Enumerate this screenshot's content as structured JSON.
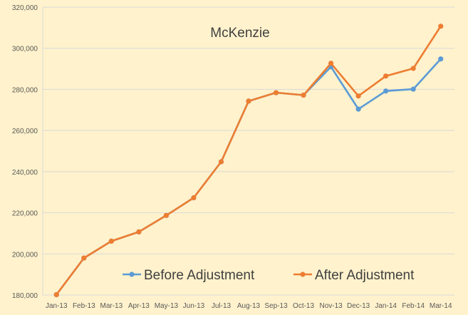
{
  "chart_data": {
    "type": "line",
    "title": "McKenzie",
    "xlabel": "",
    "ylabel": "",
    "categories": [
      "Jan-13",
      "Feb-13",
      "Mar-13",
      "Apr-13",
      "May-13",
      "Jun-13",
      "Jul-13",
      "Aug-13",
      "Sep-13",
      "Oct-13",
      "Nov-13",
      "Dec-13",
      "Jan-14",
      "Feb-14",
      "Mar-14"
    ],
    "ylim": [
      180000,
      320000
    ],
    "yticks": [
      180000,
      200000,
      220000,
      240000,
      260000,
      280000,
      300000,
      320000
    ],
    "ytick_labels": [
      "180,000",
      "200,000",
      "220,000",
      "240,000",
      "260,000",
      "280,000",
      "300,000",
      "320,000"
    ],
    "grid": true,
    "legend_position": "bottom-inside",
    "series": [
      {
        "name": "Before Adjustment",
        "color": "#5B9BD5",
        "values": [
          180200,
          198000,
          206200,
          210700,
          218700,
          227300,
          244800,
          274300,
          278400,
          277200,
          291000,
          270400,
          279200,
          280100,
          294800
        ]
      },
      {
        "name": "After Adjustment",
        "color": "#ED7D31",
        "values": [
          180200,
          198000,
          206200,
          210700,
          218700,
          227300,
          244800,
          274300,
          278400,
          277200,
          292700,
          276800,
          286500,
          290200,
          310700
        ]
      }
    ],
    "plot_background": "#FFF2CC",
    "gridline_color": "#D9D9D9"
  }
}
